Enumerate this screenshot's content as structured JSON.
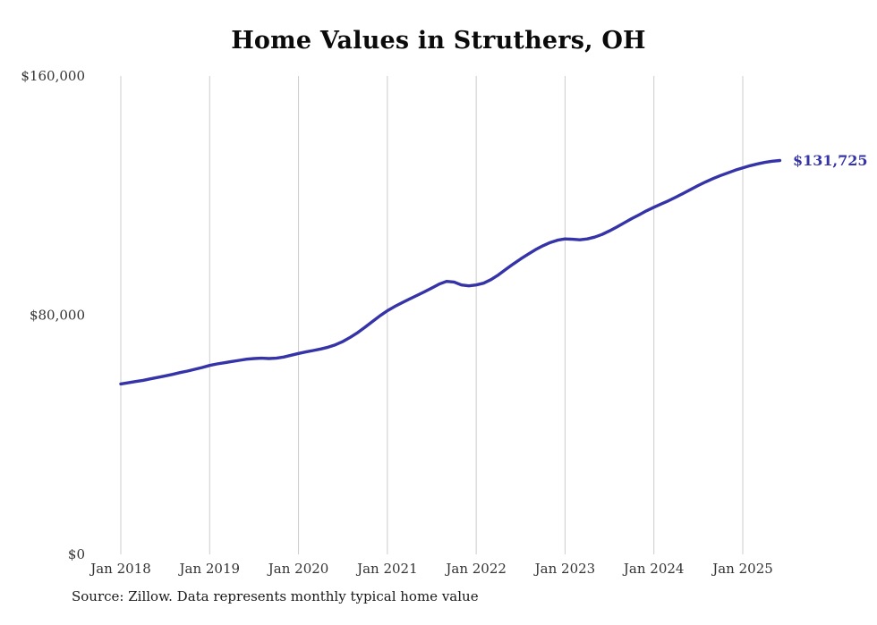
{
  "title": "Home Values in Struthers, OH",
  "source_note": "Source: Zillow. Data represents monthly typical home value",
  "end_label": "$131,725",
  "colors": {
    "line": "#3533a8",
    "grid": "#cccccc",
    "tick_text": "#333333",
    "title_text": "#0b0b0b",
    "background": "#ffffff"
  },
  "chart_data": {
    "type": "line",
    "title": "Home Values in Struthers, OH",
    "xlabel": "",
    "ylabel": "",
    "ylim": [
      0,
      160000
    ],
    "grid": "vertical-only",
    "legend": "none",
    "y_ticks": [
      0,
      80000,
      160000
    ],
    "y_tick_labels": [
      "$0",
      "$80,000",
      "$160,000"
    ],
    "x_tick_labels": [
      "Jan 2018",
      "Jan 2019",
      "Jan 2020",
      "Jan 2021",
      "Jan 2022",
      "Jan 2023",
      "Jan 2024",
      "Jan 2025"
    ],
    "last_value_label": "$131,725",
    "x": [
      "2018-01",
      "2018-02",
      "2018-03",
      "2018-04",
      "2018-05",
      "2018-06",
      "2018-07",
      "2018-08",
      "2018-09",
      "2018-10",
      "2018-11",
      "2018-12",
      "2019-01",
      "2019-02",
      "2019-03",
      "2019-04",
      "2019-05",
      "2019-06",
      "2019-07",
      "2019-08",
      "2019-09",
      "2019-10",
      "2019-11",
      "2019-12",
      "2020-01",
      "2020-02",
      "2020-03",
      "2020-04",
      "2020-05",
      "2020-06",
      "2020-07",
      "2020-08",
      "2020-09",
      "2020-10",
      "2020-11",
      "2020-12",
      "2021-01",
      "2021-02",
      "2021-03",
      "2021-04",
      "2021-05",
      "2021-06",
      "2021-07",
      "2021-08",
      "2021-09",
      "2021-10",
      "2021-11",
      "2021-12",
      "2022-01",
      "2022-02",
      "2022-03",
      "2022-04",
      "2022-05",
      "2022-06",
      "2022-07",
      "2022-08",
      "2022-09",
      "2022-10",
      "2022-11",
      "2022-12",
      "2023-01",
      "2023-02",
      "2023-03",
      "2023-04",
      "2023-05",
      "2023-06",
      "2023-07",
      "2023-08",
      "2023-09",
      "2023-10",
      "2023-11",
      "2023-12",
      "2024-01",
      "2024-02",
      "2024-03",
      "2024-04",
      "2024-05",
      "2024-06",
      "2024-07",
      "2024-08",
      "2024-09",
      "2024-10",
      "2024-11",
      "2024-12",
      "2025-01",
      "2025-02",
      "2025-03",
      "2025-04",
      "2025-05",
      "2025-06"
    ],
    "values": [
      57000,
      57400,
      57800,
      58200,
      58700,
      59200,
      59700,
      60200,
      60800,
      61300,
      61900,
      62500,
      63200,
      63700,
      64100,
      64500,
      64900,
      65300,
      65500,
      65600,
      65500,
      65600,
      66000,
      66600,
      67200,
      67700,
      68200,
      68700,
      69300,
      70100,
      71200,
      72600,
      74200,
      76000,
      77900,
      79800,
      81500,
      82900,
      84200,
      85400,
      86600,
      87800,
      89100,
      90400,
      91300,
      91100,
      90100,
      89800,
      90100,
      90700,
      91900,
      93500,
      95300,
      97100,
      98800,
      100400,
      101900,
      103200,
      104300,
      105100,
      105500,
      105400,
      105200,
      105500,
      106100,
      107000,
      108200,
      109500,
      110900,
      112300,
      113600,
      114900,
      116100,
      117200,
      118300,
      119500,
      120800,
      122100,
      123400,
      124600,
      125700,
      126700,
      127600,
      128500,
      129300,
      130000,
      130600,
      131100,
      131500,
      131725
    ]
  }
}
